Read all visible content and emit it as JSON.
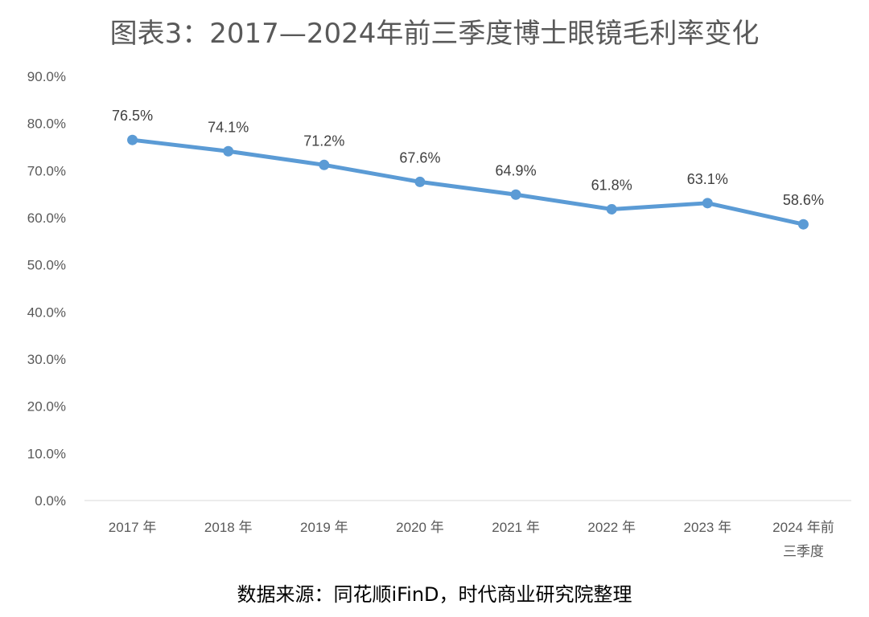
{
  "chart_data": {
    "type": "line",
    "title": "图表3：2017—2024年前三季度博士眼镜毛利率变化",
    "source": "数据来源：同花顺iFinD，时代商业研究院整理",
    "categories": [
      "2017 年",
      "2018 年",
      "2019 年",
      "2020 年",
      "2021 年",
      "2022 年",
      "2023 年",
      "2024 年前|三季度"
    ],
    "series": [
      {
        "name": "毛利率",
        "values": [
          76.5,
          74.1,
          71.2,
          67.6,
          64.9,
          61.8,
          63.1,
          58.6
        ]
      }
    ],
    "data_labels": [
      "76.5%",
      "74.1%",
      "71.2%",
      "67.6%",
      "64.9%",
      "61.8%",
      "63.1%",
      "58.6%"
    ],
    "y_ticks": [
      "0.0%",
      "10.0%",
      "20.0%",
      "30.0%",
      "40.0%",
      "50.0%",
      "60.0%",
      "70.0%",
      "80.0%",
      "90.0%"
    ],
    "ylim": [
      0,
      90
    ],
    "xlabel": "",
    "ylabel": "",
    "grid": false,
    "legend": "none",
    "color": "#5b9bd5"
  }
}
